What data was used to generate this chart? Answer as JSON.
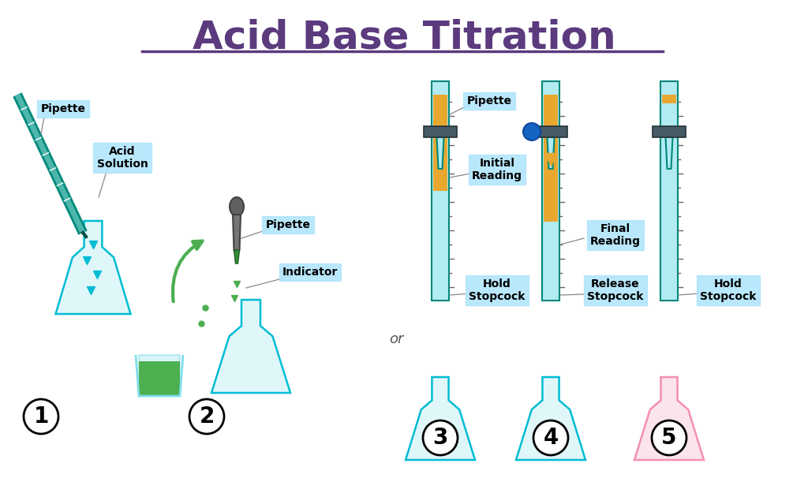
{
  "title": "Acid Base Titration",
  "title_color": "#5B3A7E",
  "title_fontsize": 36,
  "bg_color": "#ffffff",
  "colors": {
    "teal_liquid": "#00BCD4",
    "teal_light": "#B2EBF2",
    "teal_flask_body": "#E0F7FA",
    "orange_liquid": "#E8A830",
    "green_liquid": "#4CAF50",
    "green_arrow": "#4CAF50",
    "pipette_color": "#00897B",
    "label_bg": "#B3E5FC",
    "stopcock_color": "#455A64",
    "blue_dot": "#1565C0",
    "pink_liquid": "#F48FB1",
    "pink_flask": "#FCE4EC",
    "or_text": "#555555"
  },
  "labels": {
    "pipette1": "Pipette",
    "acid_solution": "Acid\nSolution",
    "step1": "1",
    "step2": "2",
    "pipette2": "Pipette",
    "indicator": "Indicator",
    "initial_reading": "Initial\nReading",
    "pipette3": "Pipette",
    "hold_stopcock3": "Hold\nStopcock",
    "step3": "3",
    "final_reading": "Final\nReading",
    "release_stopcock": "Release\nStopcock",
    "step4": "4",
    "hold_stopcock5": "Hold\nStopcock",
    "step5": "5",
    "or": "or"
  }
}
